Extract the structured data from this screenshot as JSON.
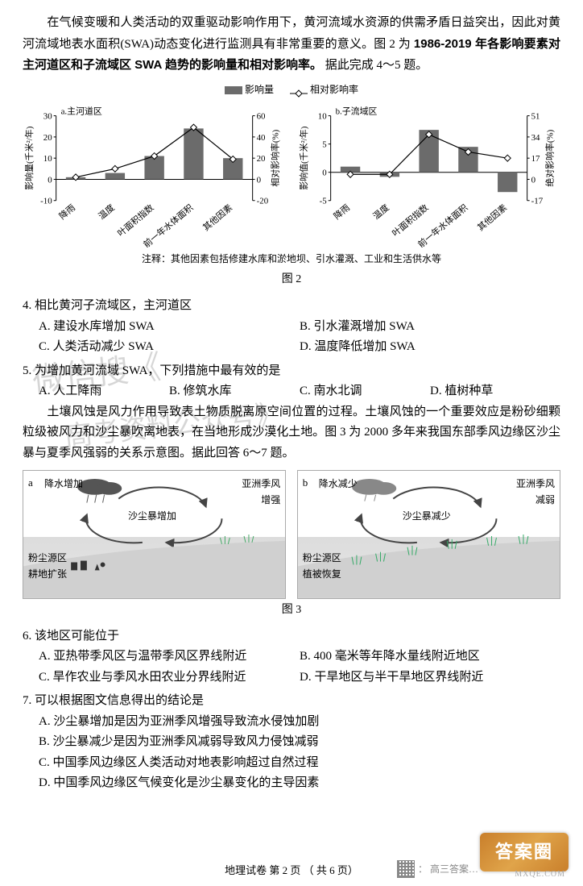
{
  "passage1": {
    "p1a": "在气候变暖和人类活动的双重驱动影响作用下，黄河流域水资源的供需矛盾日益突出，因此对黄河流域地表水面积(SWA)动态变化进行监测具有非常重要的意义。图 2 为",
    "p1b": "1986-2019 年各影响要素对主河道区和子流域区 SWA 趋势的影响量和相对影响率。",
    "p1c": "据此完成 4～5 题。"
  },
  "legend": {
    "bar_label": "影响量",
    "line_label": "相对影响率",
    "bar_color": "#6b6b6b",
    "line_marker_color": "#ffffff",
    "line_stroke": "#000000"
  },
  "chartA": {
    "title": "a.主河道区",
    "y_left_label": "影响量(千米²/年)",
    "y_right_label": "相对影响率(%)",
    "y_left_ticks": [
      -10,
      0,
      10,
      20,
      30
    ],
    "y_right_ticks": [
      -20,
      0,
      20,
      40,
      60
    ],
    "categories": [
      "降雨",
      "温度",
      "叶面积指数",
      "前一年水体面积",
      "其他因素"
    ],
    "bar_values": [
      1,
      3,
      11,
      24,
      10
    ],
    "line_values": [
      2,
      10,
      22,
      49,
      19
    ]
  },
  "chartB": {
    "title": "b.子流域区",
    "y_left_label": "影响值(千米²/年)",
    "y_right_label": "绝对影响率(%)",
    "y_left_ticks": [
      -5,
      0,
      5,
      10
    ],
    "y_right_ticks": [
      -17,
      0,
      17,
      34,
      51
    ],
    "categories": [
      "降雨",
      "温度",
      "叶面积指数",
      "前一年水体面积",
      "其他因素"
    ],
    "bar_values": [
      1,
      -0.8,
      7.5,
      4.5,
      -3.5
    ],
    "line_values": [
      4,
      4,
      36,
      22,
      17
    ]
  },
  "note": "注释：其他因素包括修建水库和淤地坝、引水灌溉、工业和生活供水等",
  "fig2_caption": "图 2",
  "q4": {
    "stem": "4. 相比黄河子流域区，主河道区",
    "A": "A. 建设水库增加 SWA",
    "B": "B. 引水灌溉增加 SWA",
    "C": "C. 人类活动减少 SWA",
    "D": "D. 温度降低增加 SWA"
  },
  "q5": {
    "stem": "5. 为增加黄河流域 SWA，下列措施中最有效的是",
    "A": "A. 人工降雨",
    "B": "B. 修筑水库",
    "C": "C. 南水北调",
    "D": "D. 植树种草"
  },
  "passage2": {
    "p": "土壤风蚀是风力作用导致表土物质脱离原空间位置的过程。土壤风蚀的一个重要效应是粉砂细颗粒级被风力和沙尘暴吹离地表，在当地形成沙漠化土地。图 3 为 2000 多年来我国东部季风边缘区沙尘暴与夏季风强弱的关系示意图。据此回答 6～7 题。"
  },
  "diagA": {
    "tag": "a",
    "rain": "降水增加",
    "monsoon": "亚洲季风\n增强",
    "dust": "沙尘暴增加",
    "source": "粉尘源区\n耕地扩张"
  },
  "diagB": {
    "tag": "b",
    "rain": "降水减少",
    "monsoon": "亚洲季风\n减弱",
    "dust": "沙尘暴减少",
    "source": "粉尘源区\n植被恢复"
  },
  "fig3_caption": "图 3",
  "q6": {
    "stem": "6. 该地区可能位于",
    "A": "A. 亚热带季风区与温带季风区界线附近",
    "B": "B. 400 毫米等年降水量线附近地区",
    "C": "C. 旱作农业与季风水田农业分界线附近",
    "D": "D. 干旱地区与半干旱地区界线附近"
  },
  "q7": {
    "stem": "7. 可以根据图文信息得出的结论是",
    "A": "A. 沙尘暴增加是因为亚洲季风增强导致流水侵蚀加剧",
    "B": "B. 沙尘暴减少是因为亚洲季风减弱导致风力侵蚀减弱",
    "C": "C. 中国季风边缘区人类活动对地表影响超过自然过程",
    "D": "D. 中国季风边缘区气候变化是沙尘暴变化的主导因素"
  },
  "footer": "地理试卷  第 2 页 （ 共 6 页）",
  "watermark1": "微信搜《",
  "watermark2": "高考资料公众号》",
  "stamp": "答案圈",
  "stamp_sub": "MXQE.COM",
  "qr_label": "： 高三答案…"
}
